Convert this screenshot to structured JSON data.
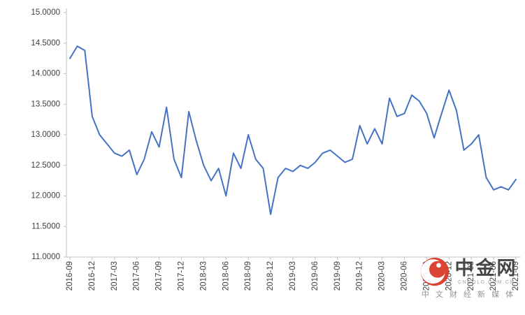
{
  "chart_data": {
    "type": "line",
    "title": "",
    "xlabel": "",
    "ylabel": "",
    "grid": false,
    "legend": "none",
    "line_color": "#4472C4",
    "axis_color": "#BFBFBF",
    "label_color": "#3F3F3F",
    "ylim": [
      11.0,
      15.0
    ],
    "tick_every": 3,
    "y_ticks": [
      {
        "label": "15.0000",
        "value": 15.0
      },
      {
        "label": "14.5000",
        "value": 14.5
      },
      {
        "label": "14.0000",
        "value": 14.0
      },
      {
        "label": "13.5000",
        "value": 13.5
      },
      {
        "label": "13.0000",
        "value": 13.0
      },
      {
        "label": "12.5000",
        "value": 12.5
      },
      {
        "label": "12.0000",
        "value": 12.0
      },
      {
        "label": "11.5000",
        "value": 11.5
      },
      {
        "label": "11.0000",
        "value": 11.0
      }
    ],
    "x": [
      "2016-09",
      "2016-10",
      "2016-11",
      "2016-12",
      "2017-01",
      "2017-02",
      "2017-03",
      "2017-04",
      "2017-05",
      "2017-06",
      "2017-07",
      "2017-08",
      "2017-09",
      "2017-10",
      "2017-11",
      "2017-12",
      "2018-01",
      "2018-02",
      "2018-03",
      "2018-04",
      "2018-05",
      "2018-06",
      "2018-07",
      "2018-08",
      "2018-09",
      "2018-10",
      "2018-11",
      "2018-12",
      "2019-01",
      "2019-02",
      "2019-03",
      "2019-04",
      "2019-05",
      "2019-06",
      "2019-07",
      "2019-08",
      "2019-09",
      "2019-10",
      "2019-11",
      "2019-12",
      "2020-01",
      "2020-02",
      "2020-03",
      "2020-04",
      "2020-05",
      "2020-06",
      "2020-07",
      "2020-08",
      "2020-09",
      "2020-10",
      "2020-11",
      "2020-12",
      "2021-01",
      "2021-02",
      "2021-03",
      "2021-04",
      "2021-05",
      "2021-06",
      "2021-07",
      "2021-08",
      "2021-09"
    ],
    "values": [
      14.25,
      14.45,
      14.38,
      13.3,
      13.0,
      12.85,
      12.7,
      12.65,
      12.75,
      12.35,
      12.6,
      13.05,
      12.8,
      13.45,
      12.6,
      12.3,
      13.38,
      12.9,
      12.5,
      12.25,
      12.45,
      12.0,
      12.7,
      12.45,
      13.0,
      12.6,
      12.45,
      11.7,
      12.3,
      12.45,
      12.4,
      12.5,
      12.45,
      12.55,
      12.7,
      12.75,
      12.65,
      12.55,
      12.6,
      13.15,
      12.85,
      13.1,
      12.85,
      13.6,
      13.3,
      13.35,
      13.65,
      13.55,
      13.35,
      12.95,
      13.35,
      13.73,
      13.4,
      12.75,
      12.85,
      13.0,
      12.3,
      12.1,
      12.15,
      12.1,
      12.27
    ]
  },
  "watermark": {
    "brand": "中金网",
    "domain": "CNGOLD.COM.CN",
    "tagline": "中 文 财 经 新 媒 体",
    "logo_color": "#DA3B28"
  }
}
